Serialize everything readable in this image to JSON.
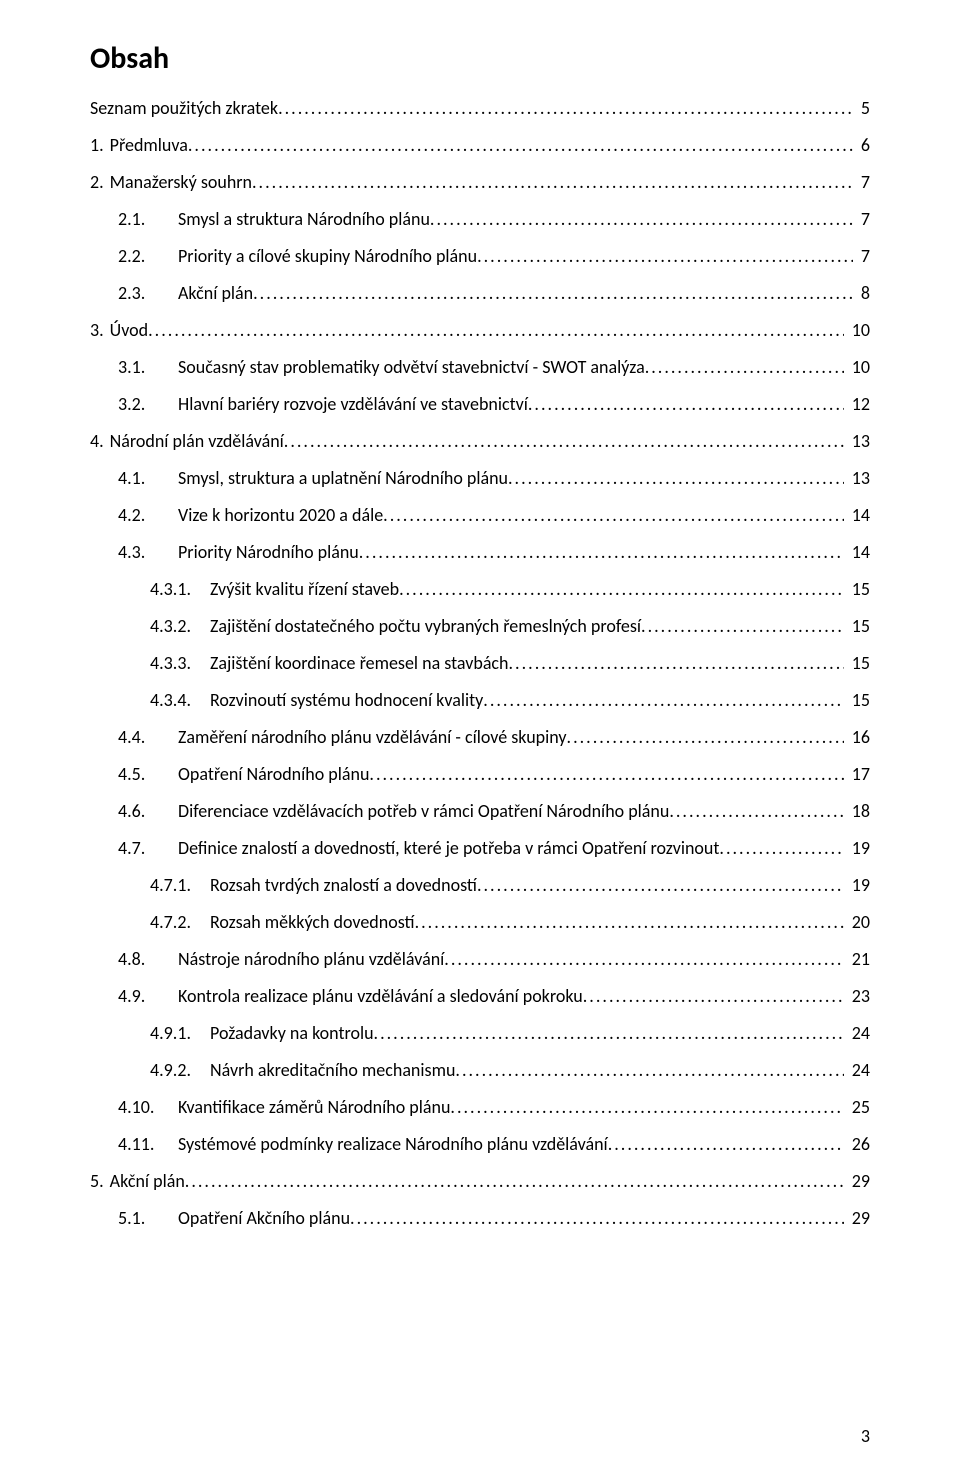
{
  "title": "Obsah",
  "footer_page": "3",
  "toc": [
    {
      "num": "",
      "label": "Seznam použitých zkratek",
      "page": "5",
      "indent": 0
    },
    {
      "num": "1.",
      "label": "Předmluva",
      "page": "6",
      "indent": 1
    },
    {
      "num": "2.",
      "label": "Manažerský souhrn",
      "page": "7",
      "indent": 1
    },
    {
      "num": "2.1.",
      "label": "Smysl a struktura Národního plánu",
      "page": "7",
      "indent": 2
    },
    {
      "num": "2.2.",
      "label": "Priority a cílové skupiny Národního plánu",
      "page": "7",
      "indent": 2
    },
    {
      "num": "2.3.",
      "label": "Akční plán",
      "page": "8",
      "indent": 2
    },
    {
      "num": "3.",
      "label": "Úvod",
      "page": "10",
      "indent": 1
    },
    {
      "num": "3.1.",
      "label": "Současný stav problematiky odvětví stavebnictví - SWOT analýza",
      "page": "10",
      "indent": 2
    },
    {
      "num": "3.2.",
      "label": "Hlavní bariéry rozvoje vzdělávání ve stavebnictví",
      "page": "12",
      "indent": 2
    },
    {
      "num": "4.",
      "label": "Národní plán vzdělávání",
      "page": "13",
      "indent": 1
    },
    {
      "num": "4.1.",
      "label": "Smysl, struktura a uplatnění Národního plánu",
      "page": "13",
      "indent": 2
    },
    {
      "num": "4.2.",
      "label": "Vize k horizontu 2020 a dále",
      "page": "14",
      "indent": 2
    },
    {
      "num": "4.3.",
      "label": "Priority Národního plánu",
      "page": "14",
      "indent": 2
    },
    {
      "num": "4.3.1.",
      "label": "Zvýšit kvalitu řízení staveb",
      "page": "15",
      "indent": 3
    },
    {
      "num": "4.3.2.",
      "label": "Zajištění dostatečného počtu vybraných řemeslných profesí",
      "page": "15",
      "indent": 3
    },
    {
      "num": "4.3.3.",
      "label": "Zajištění koordinace řemesel na stavbách",
      "page": "15",
      "indent": 3
    },
    {
      "num": "4.3.4.",
      "label": "Rozvinoutí systému hodnocení kvality",
      "page": "15",
      "indent": 3
    },
    {
      "num": "4.4.",
      "label": "Zaměření národního plánu vzdělávání - cílové skupiny",
      "page": "16",
      "indent": 2
    },
    {
      "num": "4.5.",
      "label": "Opatření Národního plánu",
      "page": "17",
      "indent": 2
    },
    {
      "num": "4.6.",
      "label": "Diferenciace vzdělávacích potřeb v rámci Opatření Národního plánu",
      "page": "18",
      "indent": 2
    },
    {
      "num": "4.7.",
      "label": "Definice znalostí a dovedností, které je potřeba v rámci Opatření rozvinout",
      "page": "19",
      "indent": 2
    },
    {
      "num": "4.7.1.",
      "label": "Rozsah tvrdých znalostí a dovedností",
      "page": "19",
      "indent": 3
    },
    {
      "num": "4.7.2.",
      "label": "Rozsah měkkých dovedností",
      "page": "20",
      "indent": 3
    },
    {
      "num": "4.8.",
      "label": "Nástroje národního plánu vzdělávání",
      "page": "21",
      "indent": 2
    },
    {
      "num": "4.9.",
      "label": "Kontrola realizace plánu vzdělávání a sledování pokroku",
      "page": "23",
      "indent": 2
    },
    {
      "num": "4.9.1.",
      "label": "Požadavky na kontrolu",
      "page": "24",
      "indent": 3
    },
    {
      "num": "4.9.2.",
      "label": "Návrh akreditačního mechanismu",
      "page": "24",
      "indent": 3
    },
    {
      "num": "4.10.",
      "label": "Kvantifikace záměrů Národního plánu",
      "page": "25",
      "indent": 2
    },
    {
      "num": "4.11.",
      "label": "Systémové podmínky realizace Národního plánu vzdělávání",
      "page": "26",
      "indent": 2
    },
    {
      "num": "5.",
      "label": "Akční plán",
      "page": "29",
      "indent": 1
    },
    {
      "num": "5.1.",
      "label": "Opatření Akčního plánu",
      "page": "29",
      "indent": 2
    }
  ]
}
